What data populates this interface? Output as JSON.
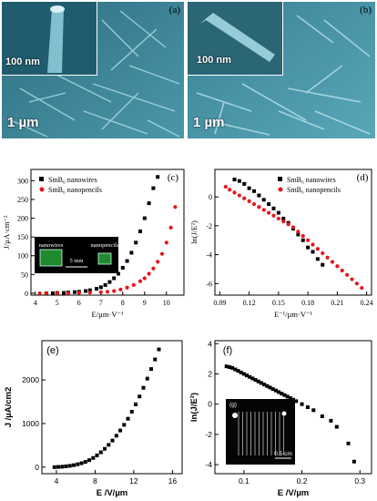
{
  "panel_a": {
    "label": "(a)",
    "inset_scale": "100 nm",
    "main_scale": "1 µm"
  },
  "panel_b": {
    "label": "(b)",
    "inset_scale": "100 nm",
    "main_scale": "1 µm"
  },
  "chart_data": [
    {
      "id": "c",
      "label": "(c)",
      "type": "scatter",
      "xlabel": "E/µm·V⁻¹",
      "ylabel": "J/µA·cm⁻²",
      "xticks": [
        "4",
        "5",
        "6",
        "7",
        "8",
        "9",
        "10"
      ],
      "yticks": [
        "0",
        "50",
        "100",
        "150",
        "200",
        "250",
        "300"
      ],
      "xlim": [
        3.8,
        10.8
      ],
      "ylim": [
        -5,
        330
      ],
      "inset": {
        "left_label": "nanowires",
        "right_label": "nanopencils",
        "scale": "5 mm"
      },
      "series": [
        {
          "name": "SmB₆ nanowires",
          "color": "#000000",
          "marker": "square",
          "x": [
            4.5,
            4.8,
            5.0,
            5.3,
            5.5,
            5.8,
            6.0,
            6.3,
            6.5,
            6.8,
            7.0,
            7.2,
            7.4,
            7.6,
            7.8,
            8.0,
            8.2,
            8.4,
            8.6,
            8.8,
            9.0,
            9.2,
            9.4,
            9.6
          ],
          "y": [
            0,
            0,
            1,
            1,
            2,
            3,
            4,
            6,
            8,
            12,
            16,
            22,
            30,
            40,
            52,
            68,
            86,
            108,
            135,
            165,
            200,
            240,
            280,
            310
          ]
        },
        {
          "name": "SmB₆ nanopencils",
          "color": "#e8141a",
          "marker": "circle",
          "x": [
            4.2,
            4.5,
            5.0,
            5.5,
            6.0,
            6.5,
            7.0,
            7.3,
            7.6,
            7.9,
            8.2,
            8.5,
            8.8,
            9.0,
            9.2,
            9.4,
            9.6,
            9.8,
            10.0,
            10.2,
            10.4
          ],
          "y": [
            0,
            0,
            0,
            0,
            1,
            2,
            3,
            4,
            6,
            10,
            15,
            22,
            32,
            40,
            52,
            66,
            84,
            105,
            135,
            175,
            230
          ]
        }
      ]
    },
    {
      "id": "d",
      "label": "(d)",
      "type": "scatter",
      "xlabel": "E⁻¹/µm·V⁻¹",
      "ylabel": "ln(J/E²)",
      "xticks": [
        "0.09",
        "0.12",
        "0.15",
        "0.18",
        "0.21",
        "0.24"
      ],
      "yticks": [
        "-6",
        "-4",
        "-2",
        "0"
      ],
      "xlim": [
        0.085,
        0.245
      ],
      "ylim": [
        -6.8,
        1.9
      ],
      "series": [
        {
          "name": "SmB₆ nanowires",
          "color": "#000000",
          "marker": "square",
          "x": [
            0.105,
            0.11,
            0.115,
            0.12,
            0.125,
            0.13,
            0.135,
            0.14,
            0.145,
            0.15,
            0.155,
            0.16,
            0.165,
            0.17,
            0.175,
            0.18,
            0.185,
            0.19,
            0.195
          ],
          "y": [
            1.2,
            1.1,
            0.9,
            0.6,
            0.4,
            0.1,
            -0.2,
            -0.5,
            -0.8,
            -1.1,
            -1.5,
            -1.8,
            -2.2,
            -2.6,
            -3.0,
            -3.5,
            -3.8,
            -4.3,
            -4.7
          ]
        },
        {
          "name": "SmB₆ nanopencils",
          "color": "#e8141a",
          "marker": "circle",
          "x": [
            0.096,
            0.1,
            0.105,
            0.11,
            0.115,
            0.12,
            0.125,
            0.13,
            0.135,
            0.14,
            0.145,
            0.15,
            0.155,
            0.16,
            0.165,
            0.17,
            0.175,
            0.18,
            0.185,
            0.19,
            0.195,
            0.2,
            0.205,
            0.21,
            0.215,
            0.22,
            0.225,
            0.23,
            0.235
          ],
          "y": [
            0.7,
            0.5,
            0.3,
            0.1,
            -0.1,
            -0.3,
            -0.5,
            -0.7,
            -0.9,
            -1.1,
            -1.3,
            -1.5,
            -1.7,
            -1.9,
            -2.1,
            -2.4,
            -2.7,
            -3.0,
            -3.3,
            -3.6,
            -3.9,
            -4.2,
            -4.5,
            -4.8,
            -5.1,
            -5.4,
            -5.7,
            -6.0,
            -6.3
          ]
        }
      ]
    },
    {
      "id": "e",
      "label": "(e)",
      "type": "scatter",
      "xlabel": "E /V/µm",
      "ylabel": "J /µA/cm2",
      "xticks": [
        "4",
        "8",
        "12",
        "16"
      ],
      "yticks": [
        "0",
        "1000",
        "2000"
      ],
      "xlim": [
        2.5,
        17
      ],
      "ylim": [
        -150,
        2900
      ],
      "series": [
        {
          "name": "",
          "color": "#000000",
          "marker": "square",
          "x": [
            3.8,
            4.2,
            4.6,
            5.0,
            5.4,
            5.8,
            6.2,
            6.6,
            7.0,
            7.4,
            7.8,
            8.2,
            8.6,
            9.0,
            9.4,
            9.8,
            10.2,
            10.6,
            11.0,
            11.4,
            11.8,
            12.2,
            12.6,
            13.0,
            13.4,
            13.8,
            14.2,
            14.6
          ],
          "y": [
            0,
            5,
            10,
            20,
            30,
            45,
            65,
            90,
            120,
            160,
            210,
            270,
            340,
            420,
            510,
            610,
            720,
            840,
            970,
            1110,
            1270,
            1440,
            1620,
            1820,
            2030,
            2250,
            2470,
            2700
          ]
        }
      ]
    },
    {
      "id": "f",
      "label": "(f)",
      "type": "scatter",
      "xlabel": "E /V/µm",
      "ylabel": "ln(J/E²)",
      "xticks": [
        "0.1",
        "0.2",
        "0.3"
      ],
      "yticks": [
        "-4",
        "-2",
        "0",
        "2",
        "4"
      ],
      "xlim": [
        0.05,
        0.32
      ],
      "ylim": [
        -4.6,
        4.2
      ],
      "inset": {
        "label": "(g)",
        "scale": "0.5 cm"
      },
      "series": [
        {
          "name": "",
          "color": "#000000",
          "marker": "square",
          "x": [
            0.07,
            0.075,
            0.08,
            0.085,
            0.09,
            0.095,
            0.1,
            0.105,
            0.11,
            0.115,
            0.12,
            0.125,
            0.13,
            0.135,
            0.14,
            0.145,
            0.15,
            0.155,
            0.16,
            0.165,
            0.17,
            0.175,
            0.18,
            0.185,
            0.19,
            0.2,
            0.21,
            0.22,
            0.235,
            0.25,
            0.26,
            0.28,
            0.29
          ],
          "y": [
            2.5,
            2.45,
            2.4,
            2.3,
            2.2,
            2.1,
            2.0,
            1.9,
            1.8,
            1.7,
            1.6,
            1.5,
            1.4,
            1.3,
            1.2,
            1.1,
            1.0,
            0.9,
            0.8,
            0.7,
            0.6,
            0.5,
            0.4,
            0.3,
            0.2,
            0.0,
            -0.2,
            -0.4,
            -0.8,
            -1.1,
            -1.5,
            -2.6,
            -3.8
          ]
        }
      ]
    }
  ]
}
